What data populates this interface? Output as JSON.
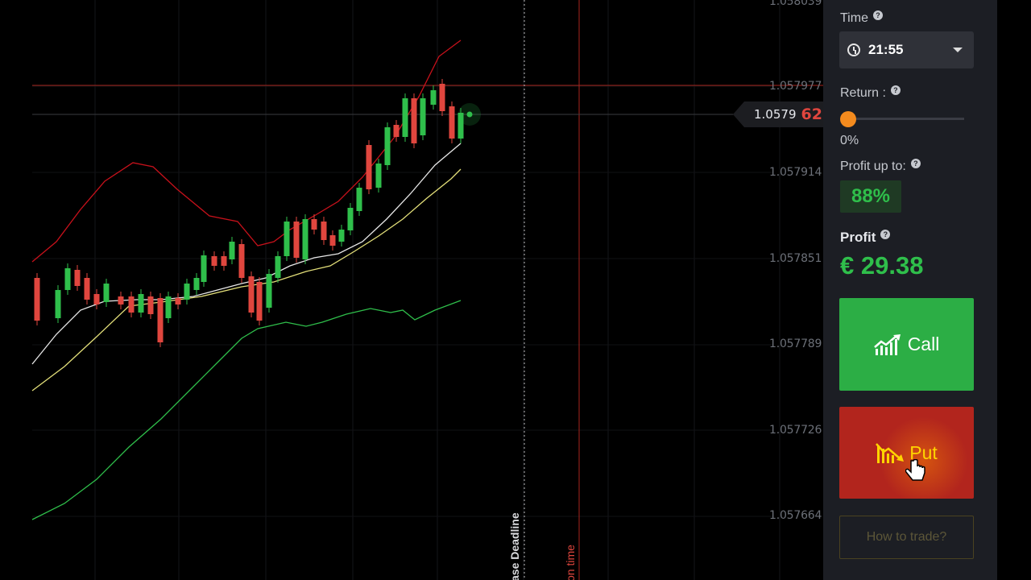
{
  "chart": {
    "price_labels": [
      "1.058039",
      "1.057977",
      "1.057914",
      "1.057851",
      "1.057789",
      "1.057726",
      "1.057664"
    ],
    "current_price_main": "1.0579",
    "current_price_tail": "62",
    "deadline_label": "ase Deadline",
    "expiry_label": "on time",
    "colors": {
      "bull": "#2fbf4b",
      "bear": "#e0463e",
      "upper_band": "#c8111b",
      "lower_band": "#2fbf4b",
      "ma_fast": "#e8e8e8",
      "ma_slow": "#e4e07a"
    }
  },
  "sidebar": {
    "time_label": "Time",
    "time_value": "21:55",
    "return_label": "Return :",
    "return_value": "0%",
    "return_fraction": 0,
    "profit_up_label": "Profit up to:",
    "profit_up_value": "88%",
    "profit_label": "Profit",
    "profit_value": "€ 29.38",
    "call_label": "Call",
    "put_label": "Put",
    "how_label": "How to trade?",
    "icons": {
      "clock": "clock-icon",
      "caret": "chevron-down-icon",
      "help": "question-icon",
      "call": "chart-up-icon",
      "put": "chart-down-icon"
    }
  }
}
